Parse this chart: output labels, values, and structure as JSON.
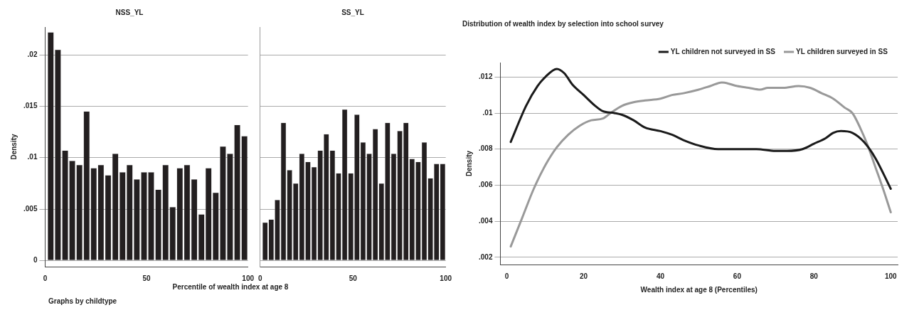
{
  "chart_data": [
    {
      "type": "histogram",
      "title": "NSS_YL",
      "ylabel": "Density",
      "xlabel": "Percentile of wealth index at age 8",
      "annotations": [
        "Graphs by childtype"
      ],
      "color": "#231f20",
      "bins": [
        1,
        4.5,
        8.1,
        11.6,
        15.1,
        18.7,
        22.2,
        25.7,
        29.3,
        32.8,
        36.4,
        39.9,
        43.4,
        47,
        50.5,
        54,
        57.6,
        61.1,
        64.6,
        68.2,
        71.7,
        75.3,
        78.8,
        82.3,
        85.9,
        89.4,
        92.9,
        96.5,
        100
      ],
      "values": [
        0.0222,
        0.0205,
        0.0107,
        0.0097,
        0.0093,
        0.0145,
        0.009,
        0.0093,
        0.0083,
        0.0104,
        0.0086,
        0.0093,
        0.0079,
        0.0086,
        0.0086,
        0.0069,
        0.0093,
        0.0052,
        0.009,
        0.0093,
        0.0079,
        0.0045,
        0.009,
        0.0066,
        0.0111,
        0.0104,
        0.0132,
        0.0121
      ],
      "xlim": [
        0,
        100
      ],
      "xticks": [
        0,
        50,
        100
      ],
      "ylim": [
        -0.0006,
        0.0227
      ],
      "yticks": [
        0,
        {
          "value": 0.005,
          "label": ".005"
        },
        {
          "value": 0.01,
          "label": ".01"
        },
        {
          "value": 0.015,
          "label": ".015"
        },
        {
          "value": 0.02,
          "label": ".02"
        }
      ],
      "grid": "y"
    },
    {
      "type": "histogram",
      "title": "SS_YL",
      "color": "#231f20",
      "bins": [
        1,
        4.3,
        7.6,
        10.9,
        14.2,
        17.5,
        20.8,
        24.1,
        27.4,
        30.7,
        34,
        37.3,
        40.6,
        43.9,
        47.2,
        50.5,
        53.8,
        57.1,
        60.4,
        63.7,
        67,
        70.3,
        73.6,
        76.9,
        80.2,
        83.5,
        86.8,
        90.1,
        93.4,
        96.7,
        100
      ],
      "values": [
        0.0037,
        0.004,
        0.0059,
        0.0134,
        0.0088,
        0.0075,
        0.0104,
        0.0096,
        0.0091,
        0.0107,
        0.0123,
        0.0107,
        0.0085,
        0.0147,
        0.0085,
        0.0142,
        0.0115,
        0.0104,
        0.0128,
        0.0075,
        0.0134,
        0.0104,
        0.0126,
        0.0134,
        0.0099,
        0.0096,
        0.0115,
        0.008,
        0.0094,
        0.0094
      ],
      "xlim": [
        0,
        100
      ],
      "xticks": [
        0,
        50,
        100
      ],
      "ylim": [
        -0.0006,
        0.0227
      ],
      "yticks": [
        {
          "value": 0,
          "label": null
        },
        {
          "value": 0.005,
          "label": null
        },
        {
          "value": 0.01,
          "label": null
        },
        {
          "value": 0.015,
          "label": null
        },
        {
          "value": 0.02,
          "label": null
        }
      ],
      "grid": "y",
      "tick_labels": "x"
    },
    {
      "type": "line",
      "title": "Distribution of wealth index by selection into school survey",
      "xlabel": "Wealth index at age 8 (Percentiles)",
      "ylabel": "Density",
      "legend": "top right",
      "grid": "y",
      "series": [
        {
          "name": "YL children not surveyed in SS",
          "color": "#1a1a1a",
          "x": [
            1,
            5,
            8,
            10,
            13,
            15,
            17,
            20,
            23,
            25,
            28,
            30,
            33,
            36,
            40,
            43,
            46,
            50,
            55,
            60,
            65,
            70,
            73,
            77,
            80,
            83,
            85,
            87,
            90,
            93,
            96,
            100
          ],
          "values": [
            0.0084,
            0.0104,
            0.0115,
            0.012,
            0.01245,
            0.0122,
            0.0116,
            0.011,
            0.0104,
            0.0101,
            0.01,
            0.0099,
            0.0096,
            0.0092,
            0.009,
            0.0088,
            0.0085,
            0.0082,
            0.008,
            0.008,
            0.008,
            0.0079,
            0.0079,
            0.008,
            0.0083,
            0.0086,
            0.0089,
            0.009,
            0.0089,
            0.0084,
            0.0075,
            0.0058
          ]
        },
        {
          "name": "YL children surveyed in SS",
          "color": "#999999",
          "x": [
            1,
            4,
            7,
            10,
            13,
            16,
            19,
            22,
            25,
            27,
            30,
            33,
            36,
            40,
            43,
            46,
            50,
            53,
            56,
            60,
            63,
            66,
            68,
            72,
            76,
            79,
            82,
            85,
            88,
            90,
            92,
            94,
            96,
            98,
            100
          ],
          "values": [
            0.0026,
            0.0042,
            0.0058,
            0.0071,
            0.0081,
            0.0088,
            0.0093,
            0.0096,
            0.0097,
            0.01,
            0.0104,
            0.0106,
            0.0107,
            0.0108,
            0.011,
            0.0111,
            0.0113,
            0.0115,
            0.0117,
            0.0115,
            0.0114,
            0.0113,
            0.0114,
            0.0114,
            0.0115,
            0.0114,
            0.0111,
            0.0108,
            0.0103,
            0.01,
            0.0092,
            0.0082,
            0.007,
            0.0058,
            0.0045
          ]
        }
      ],
      "xlim": [
        -1.7,
        101.8
      ],
      "xticks": [
        0,
        20,
        40,
        60,
        80,
        100
      ],
      "ylim": [
        0.0016,
        0.0128
      ],
      "yticks": [
        {
          "value": 0.002,
          "label": ".002"
        },
        {
          "value": 0.004,
          "label": ".004"
        },
        {
          "value": 0.006,
          "label": ".006"
        },
        {
          "value": 0.008,
          "label": ".008"
        },
        {
          "value": 0.01,
          "label": ".01"
        },
        {
          "value": 0.012,
          "label": ".012"
        }
      ]
    }
  ]
}
